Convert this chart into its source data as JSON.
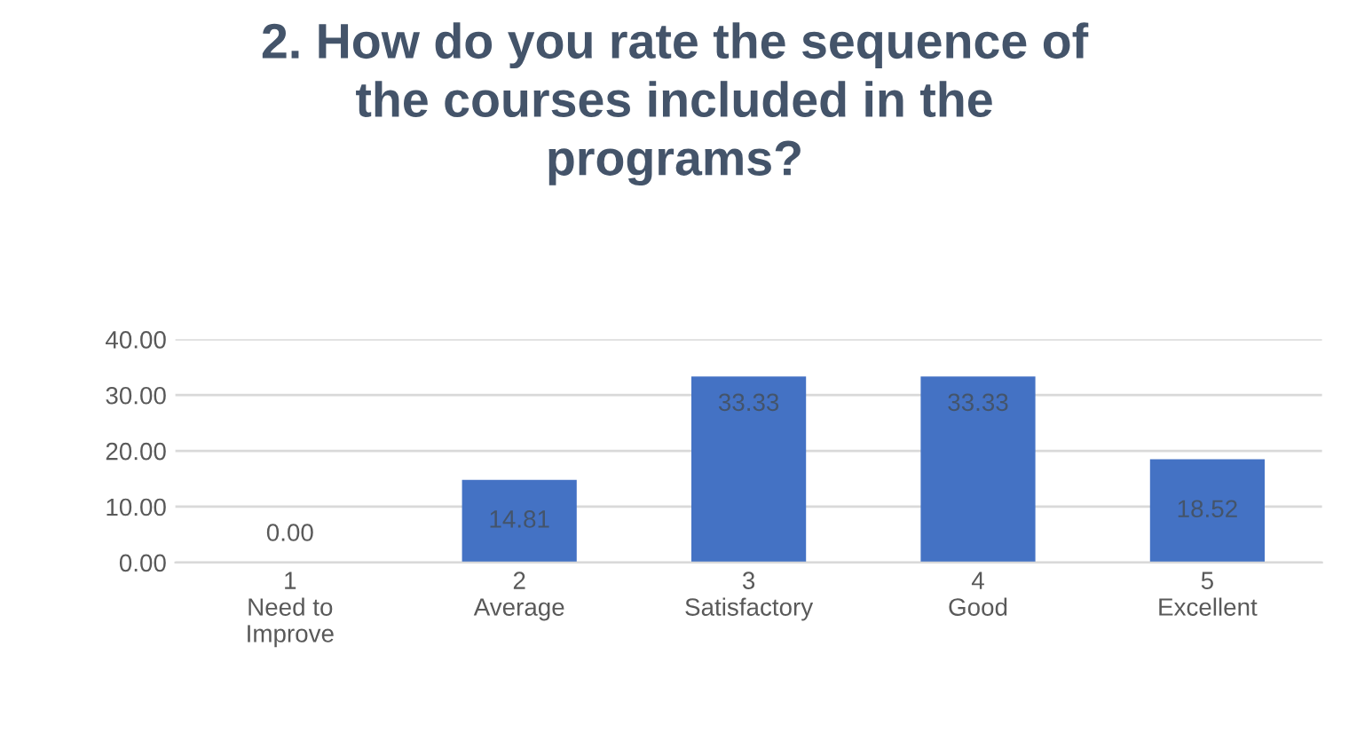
{
  "chart_data": {
    "type": "bar",
    "title": "2. How do you rate the sequence of\nthe courses included in the\nprograms?",
    "categories": [
      "1\nNeed to\nImprove",
      "2\nAverage",
      "3\nSatisfactory",
      "4\nGood",
      "5\nExcellent"
    ],
    "values": [
      0.0,
      14.81,
      33.33,
      33.33,
      18.52
    ],
    "value_labels": [
      "0.00",
      "14.81",
      "33.33",
      "33.33",
      "18.52"
    ],
    "color": "#4472c4",
    "ylim": [
      0,
      40
    ],
    "yticks": [
      {
        "value": 0,
        "label": "0.00"
      },
      {
        "value": 10,
        "label": "10.00"
      },
      {
        "value": 20,
        "label": "20.00"
      },
      {
        "value": 30,
        "label": "30.00"
      },
      {
        "value": 40,
        "label": "40.00"
      }
    ],
    "grid": "y",
    "legend": false
  }
}
